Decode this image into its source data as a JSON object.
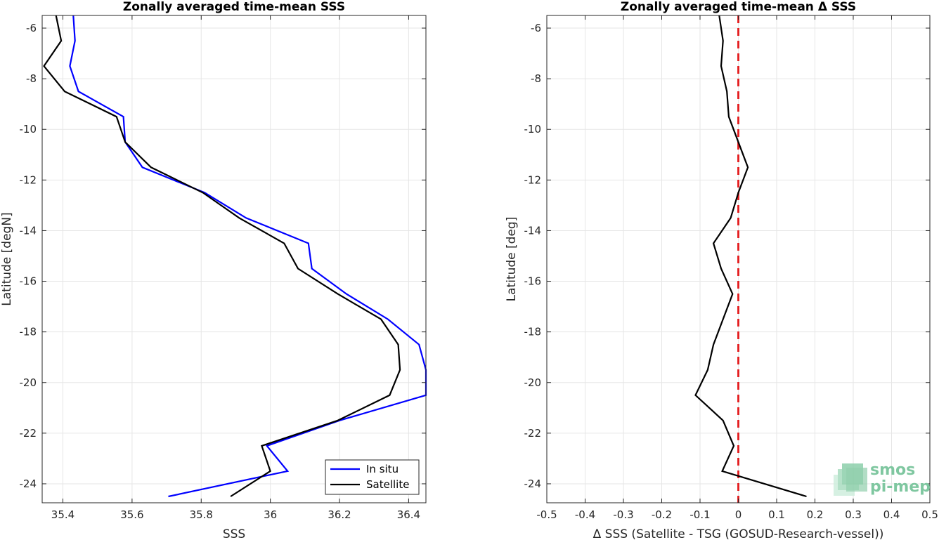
{
  "colors": {
    "in_situ": "#0000ff",
    "satellite": "#000000",
    "zero_line": "#e31a1c",
    "grid": "#e6e6e6",
    "axis": "#262626",
    "logo": "#7fc7a0"
  },
  "logo": {
    "line1": "smos",
    "line2": "pi-mep",
    "icon": "layered-squares-icon"
  },
  "chart_data": [
    {
      "type": "line",
      "title": "Zonally averaged time-mean SSS",
      "xlabel": "SSS",
      "ylabel": "Latitude [degN]",
      "xlim": [
        35.34,
        36.45
      ],
      "ylim": [
        -24.75,
        -5.5
      ],
      "xticks": [
        35.4,
        35.6,
        35.8,
        36,
        36.2,
        36.4
      ],
      "xtick_labels": [
        "35.4",
        "35.6",
        "35.8",
        "36",
        "36.2",
        "36.4"
      ],
      "yticks": [
        -6,
        -8,
        -10,
        -12,
        -14,
        -16,
        -18,
        -20,
        -22,
        -24
      ],
      "ytick_labels": [
        "-6",
        "-8",
        "-10",
        "-12",
        "-14",
        "-16",
        "-18",
        "-20",
        "-22",
        "-24"
      ],
      "grid": true,
      "legend_position": "bottom-right",
      "series": [
        {
          "name": "In situ",
          "x": [
            35.43,
            35.435,
            35.42,
            35.445,
            35.575,
            35.58,
            35.63,
            35.81,
            35.93,
            36.11,
            36.12,
            36.22,
            36.34,
            36.43,
            36.45,
            36.45,
            36.2,
            35.99,
            36.05,
            35.705
          ],
          "y": [
            -5.5,
            -6.5,
            -7.5,
            -8.5,
            -9.5,
            -10.5,
            -11.5,
            -12.5,
            -13.5,
            -14.5,
            -15.5,
            -16.5,
            -17.5,
            -18.5,
            -19.5,
            -20.5,
            -21.5,
            -22.5,
            -23.5,
            -24.5
          ]
        },
        {
          "name": "Satellite",
          "x": [
            35.38,
            35.395,
            35.345,
            35.405,
            35.555,
            35.58,
            35.655,
            35.805,
            35.91,
            36.04,
            36.08,
            36.195,
            36.32,
            36.37,
            36.375,
            36.345,
            36.195,
            35.975,
            36.0,
            35.885
          ],
          "y": [
            -5.5,
            -6.5,
            -7.5,
            -8.5,
            -9.5,
            -10.5,
            -11.5,
            -12.5,
            -13.5,
            -14.5,
            -15.5,
            -16.5,
            -17.5,
            -18.5,
            -19.5,
            -20.5,
            -21.5,
            -22.5,
            -23.5,
            -24.5
          ]
        }
      ]
    },
    {
      "type": "line",
      "title": "Zonally averaged time-mean Δ SSS",
      "xlabel": "Δ SSS (Satellite - TSG (GOSUD-Research-vessel))",
      "ylabel": "Latitude [deg]",
      "xlim": [
        -0.5,
        0.5
      ],
      "ylim": [
        -24.75,
        -5.5
      ],
      "xticks": [
        -0.5,
        -0.4,
        -0.3,
        -0.2,
        -0.1,
        0,
        0.1,
        0.2,
        0.3,
        0.4,
        0.5
      ],
      "xtick_labels": [
        "-0.5",
        "-0.4",
        "-0.3",
        "-0.2",
        "-0.1",
        "0",
        "0.1",
        "0.2",
        "0.3",
        "0.4",
        "0.5"
      ],
      "yticks": [
        -6,
        -8,
        -10,
        -12,
        -14,
        -16,
        -18,
        -20,
        -22,
        -24
      ],
      "ytick_labels": [
        "-6",
        "-8",
        "-10",
        "-12",
        "-14",
        "-16",
        "-18",
        "-20",
        "-22",
        "-24"
      ],
      "grid": true,
      "reference_line": {
        "x": 0,
        "style": "dashed"
      },
      "series": [
        {
          "x": [
            -0.05,
            -0.04,
            -0.045,
            -0.03,
            -0.025,
            0.0,
            0.025,
            0.0,
            -0.02,
            -0.065,
            -0.045,
            -0.015,
            -0.04,
            -0.065,
            -0.08,
            -0.112,
            -0.04,
            -0.012,
            -0.042,
            0.178
          ],
          "y": [
            -5.5,
            -6.5,
            -7.5,
            -8.5,
            -9.5,
            -10.5,
            -11.5,
            -12.5,
            -13.5,
            -14.5,
            -15.5,
            -16.5,
            -17.5,
            -18.5,
            -19.5,
            -20.5,
            -21.5,
            -22.5,
            -23.5,
            -24.5
          ]
        }
      ]
    }
  ]
}
